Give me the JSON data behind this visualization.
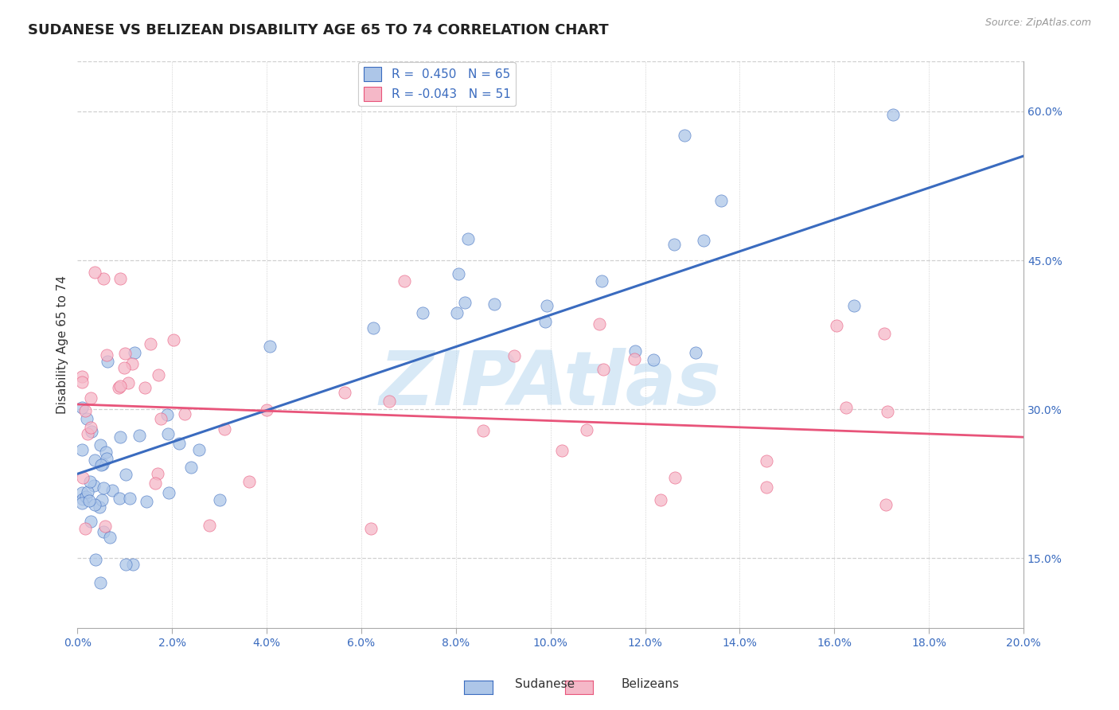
{
  "title": "SUDANESE VS BELIZEAN DISABILITY AGE 65 TO 74 CORRELATION CHART",
  "source_text": "Source: ZipAtlas.com",
  "ylabel": "Disability Age 65 to 74",
  "xlim": [
    0.0,
    0.2
  ],
  "ylim": [
    0.08,
    0.65
  ],
  "xticks": [
    0.0,
    0.02,
    0.04,
    0.06,
    0.08,
    0.1,
    0.12,
    0.14,
    0.16,
    0.18,
    0.2
  ],
  "xticklabels": [
    "0.0%",
    "2.0%",
    "4.0%",
    "6.0%",
    "8.0%",
    "10.0%",
    "12.0%",
    "14.0%",
    "16.0%",
    "18.0%",
    "20.0%"
  ],
  "yticks": [
    0.15,
    0.3,
    0.45,
    0.6
  ],
  "yticklabels": [
    "15.0%",
    "30.0%",
    "45.0%",
    "60.0%"
  ],
  "sudanese_color": "#adc6e8",
  "belizean_color": "#f5b8c8",
  "sudanese_line_color": "#3a6bbf",
  "belizean_line_color": "#e8547a",
  "R_sudanese": 0.45,
  "N_sudanese": 65,
  "R_belizean": -0.043,
  "N_belizean": 51,
  "watermark": "ZIPAtlas",
  "background_color": "#ffffff",
  "grid_color": "#d0d0d0",
  "sudanese_trend_x0": 0.0,
  "sudanese_trend_y0": 0.235,
  "sudanese_trend_x1": 0.2,
  "sudanese_trend_y1": 0.555,
  "belizean_trend_x0": 0.0,
  "belizean_trend_y0": 0.305,
  "belizean_trend_x1": 0.2,
  "belizean_trend_y1": 0.272
}
